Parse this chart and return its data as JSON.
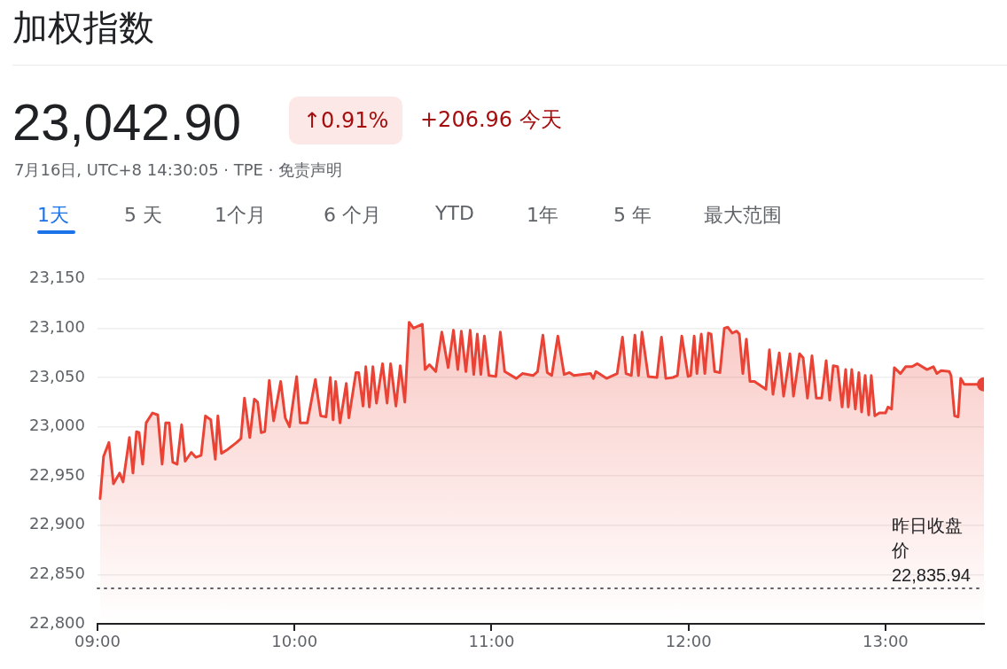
{
  "chart_data": {
    "type": "area",
    "title": "加权指数",
    "subtitle": "7月16日, UTC+8 14:30:05 · TPE · 免责声明",
    "annotations": [
      "23,042.90",
      "↑0.91%",
      "+206.96 今天",
      "1天",
      "5 天",
      "1个月",
      "6 个月",
      "YTD",
      "1年",
      "5 年",
      "最大范围"
    ],
    "x": [
      9.013,
      9.031,
      9.058,
      9.081,
      9.112,
      9.13,
      9.162,
      9.18,
      9.198,
      9.211,
      9.229,
      9.247,
      9.279,
      9.306,
      9.328,
      9.346,
      9.364,
      9.382,
      9.404,
      9.427,
      9.445,
      9.476,
      9.499,
      9.526,
      9.548,
      9.575,
      9.598,
      9.611,
      9.629,
      9.661,
      9.706,
      9.728,
      9.746,
      9.773,
      9.796,
      9.813,
      9.831,
      9.849,
      9.872,
      9.894,
      9.93,
      9.953,
      9.975,
      10.011,
      10.029,
      10.065,
      10.106,
      10.133,
      10.16,
      10.182,
      10.196,
      10.209,
      10.231,
      10.263,
      10.276,
      10.312,
      10.326,
      10.348,
      10.362,
      10.38,
      10.398,
      10.416,
      10.447,
      10.47,
      10.488,
      10.515,
      10.537,
      10.56,
      10.582,
      10.604,
      10.649,
      10.663,
      10.685,
      10.717,
      10.748,
      10.78,
      10.807,
      10.829,
      10.847,
      10.87,
      10.892,
      10.91,
      10.928,
      10.946,
      10.964,
      10.987,
      11.022,
      11.045,
      11.067,
      11.126,
      11.157,
      11.211,
      11.234,
      11.261,
      11.283,
      11.306,
      11.337,
      11.369,
      11.396,
      11.418,
      11.503,
      11.517,
      11.53,
      11.584,
      11.638,
      11.665,
      11.683,
      11.71,
      11.728,
      11.746,
      11.764,
      11.796,
      11.84,
      11.863,
      11.885,
      11.921,
      11.944,
      11.966,
      11.998,
      12.011,
      12.029,
      12.043,
      12.065,
      12.083,
      12.101,
      12.115,
      12.133,
      12.16,
      12.182,
      12.2,
      12.222,
      12.245,
      12.258,
      12.276,
      12.294,
      12.312,
      12.335,
      12.393,
      12.411,
      12.429,
      12.461,
      12.483,
      12.515,
      12.533,
      12.564,
      12.582,
      12.604,
      12.627,
      12.649,
      12.676,
      12.699,
      12.717,
      12.735,
      12.757,
      12.78,
      12.798,
      12.811,
      12.829,
      12.847,
      12.865,
      12.879,
      12.897,
      12.915,
      12.928,
      12.946,
      12.969,
      13.0,
      13.013,
      13.031,
      13.045,
      13.076,
      13.103,
      13.135,
      13.162,
      13.211,
      13.243,
      13.261,
      13.283,
      13.324,
      13.333,
      13.351,
      13.369,
      13.382,
      13.4,
      13.5
    ],
    "series": [
      {
        "color": "#ea4335",
        "values": [
          22927,
          22970,
          22984,
          22942,
          22953,
          22944,
          22989,
          22953,
          22995,
          22994,
          22962,
          23004,
          23014,
          23012,
          22962,
          23004,
          23004,
          22964,
          22962,
          23002,
          22965,
          22974,
          22969,
          22971,
          23011,
          23007,
          22967,
          23011,
          22973,
          22977,
          22984,
          22988,
          23029,
          22989,
          23028,
          23025,
          22994,
          22995,
          23047,
          23006,
          23046,
          23009,
          23000,
          23051,
          23004,
          23004,
          23048,
          23011,
          23010,
          23050,
          23007,
          23046,
          23004,
          23044,
          23009,
          23055,
          23055,
          23021,
          23061,
          23020,
          23061,
          23024,
          23064,
          23024,
          23064,
          23021,
          23062,
          23025,
          23106,
          23100,
          23104,
          23058,
          23063,
          23056,
          23096,
          23060,
          23098,
          23058,
          23097,
          23056,
          23098,
          23053,
          23094,
          23053,
          23092,
          23052,
          23051,
          23096,
          23056,
          23049,
          23054,
          23052,
          23056,
          23093,
          23055,
          23052,
          23092,
          23053,
          23055,
          23052,
          23054,
          23049,
          23056,
          23049,
          23054,
          23091,
          23054,
          23052,
          23093,
          23052,
          23096,
          23051,
          23050,
          23091,
          23049,
          23050,
          23052,
          23092,
          23051,
          23052,
          23092,
          23054,
          23094,
          23054,
          23095,
          23094,
          23056,
          23055,
          23100,
          23101,
          23095,
          23097,
          23094,
          23054,
          23089,
          23046,
          23046,
          23038,
          23078,
          23033,
          23075,
          23031,
          23074,
          23031,
          23074,
          23070,
          23029,
          23072,
          23029,
          23029,
          23067,
          23027,
          23062,
          23061,
          23020,
          23058,
          23020,
          23058,
          23018,
          23055,
          23015,
          23052,
          23012,
          23052,
          23011,
          23014,
          23014,
          23020,
          23018,
          23060,
          23054,
          23061,
          23061,
          23064,
          23058,
          23061,
          23054,
          23057,
          23056,
          23052,
          23011,
          23010,
          23049,
          23043,
          23043
        ]
      }
    ],
    "xlim": [
      9,
      13.5
    ],
    "xticks": [
      {
        "value": 9,
        "label": "09:00"
      },
      {
        "value": 10,
        "label": "10:00"
      },
      {
        "value": 11,
        "label": "11:00"
      },
      {
        "value": 12,
        "label": "12:00"
      },
      {
        "value": 13,
        "label": "13:00"
      }
    ],
    "ylim": [
      22800,
      23150
    ],
    "yticks": [
      {
        "value": 22800,
        "label": "22,800"
      },
      {
        "value": 22850,
        "label": "22,850"
      },
      {
        "value": 22900,
        "label": "22,900"
      },
      {
        "value": 22950,
        "label": "22,950"
      },
      {
        "value": 23000,
        "label": "23,000"
      },
      {
        "value": 23050,
        "label": "23,050"
      },
      {
        "value": 23100,
        "label": "23,100"
      },
      {
        "value": 23150,
        "label": "23,150"
      }
    ],
    "ref_lines": [
      {
        "axis": "y",
        "value": 22835.94,
        "label": "昨日收盘价 22,835.94",
        "line_style": "dotted",
        "color": "#5f6368"
      }
    ],
    "grid": "y",
    "legend": false,
    "marker": "none",
    "line_style": "solid"
  }
}
